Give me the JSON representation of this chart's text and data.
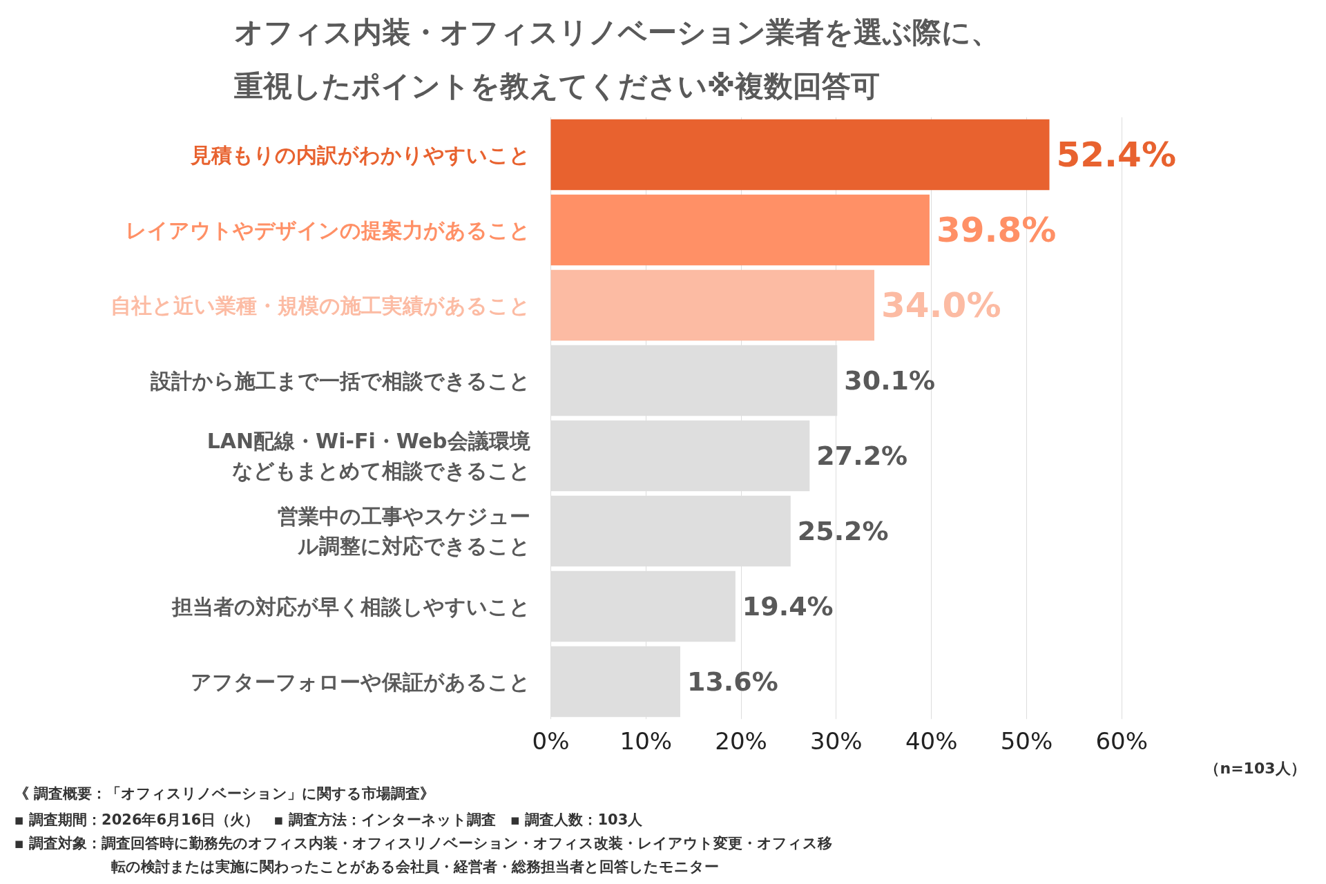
{
  "chart_data": {
    "type": "bar",
    "orientation": "horizontal",
    "title": "オフィス内装・オフィスリノベーション業者を選ぶ際に、重視したポイントを教えてください※複数回答可",
    "categories": [
      "見積もりの内訳がわかりやすいこと",
      "レイアウトやデザインの提案力があること",
      "自社と近い業種・規模の施工実績があること",
      "設計から施工まで一括で相談できること",
      "LAN配線・Wi-Fi・Web会議環境などもまとめて相談できること",
      "営業中の工事やスケジュール調整に対応できること",
      "担当者の対応が早く相談しやすいこと",
      "アフターフォローや保証があること"
    ],
    "values": [
      52.4,
      39.8,
      34.0,
      30.1,
      27.2,
      25.2,
      19.4,
      13.6
    ],
    "value_labels": [
      "52.4%",
      "39.8%",
      "34.0%",
      "30.1%",
      "27.2%",
      "25.2%",
      "19.4%",
      "13.6%"
    ],
    "colors": [
      "#e8622f",
      "#ff9066",
      "#fcbba3",
      "#dedede",
      "#dedede",
      "#dedede",
      "#dedede",
      "#dedede"
    ],
    "xlim": [
      0,
      60
    ],
    "xticks": [
      {
        "value": 0,
        "label": "0%"
      },
      {
        "value": 10,
        "label": "10%"
      },
      {
        "value": 20,
        "label": "20%"
      },
      {
        "value": 30,
        "label": "30%"
      },
      {
        "value": 40,
        "label": "40%"
      },
      {
        "value": 50,
        "label": "50%"
      },
      {
        "value": 60,
        "label": "60%"
      }
    ],
    "grid": "x",
    "annotations": [
      "（n=103人）",
      "《 調査概要：「オフィスリノベーション」に関する市場調査》",
      "▪ 調査期間：2026年6月16日（火）　▪ 調査方法：インターネット調査　▪ 調査人数：103人",
      "▪ 調査対象：調査回答時に勤務先のオフィス内装・オフィスリノベーション・オフィス改装・レイアウト変更・オフィス移転の検討または実施に関わったことがある会社員・経営者・総務担当者と回答したモニター"
    ]
  }
}
